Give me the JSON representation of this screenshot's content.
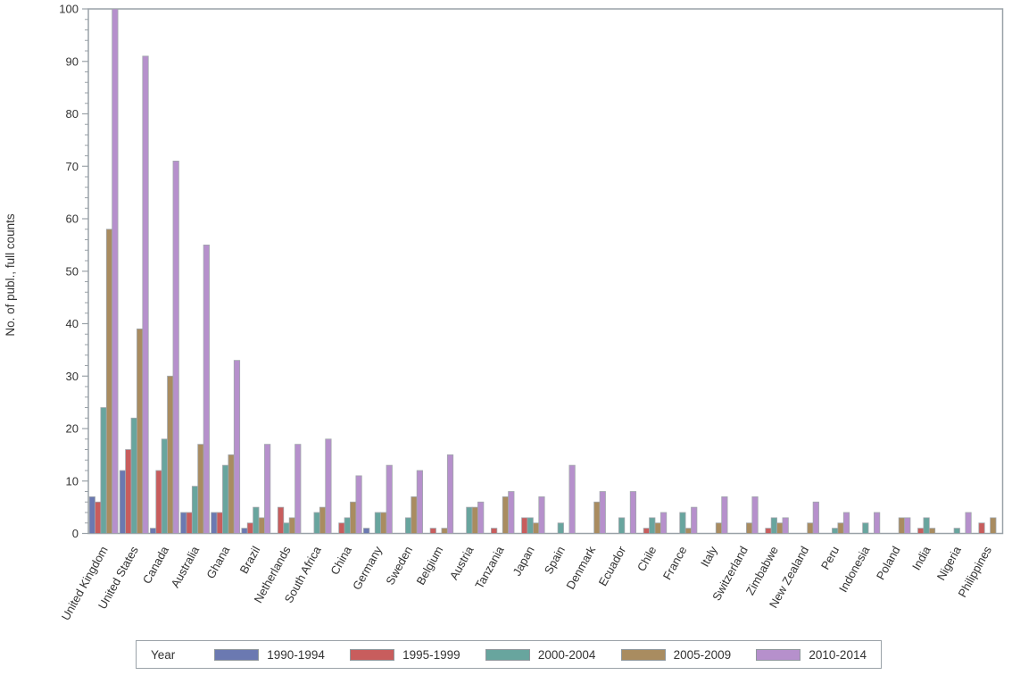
{
  "figure": {
    "background": "#ffffff",
    "frame_color": "#9aa2a8",
    "bar_border_color": "#a1a7ac",
    "text_color": "#333333"
  },
  "chart_data": {
    "type": "bar",
    "title": "",
    "xlabel": "",
    "ylabel": "No. of publ., full counts",
    "ylim": [
      0,
      100
    ],
    "y_major_tick_step": 10,
    "y_minor_tick_step": 2,
    "grid": false,
    "legend_position": "bottom",
    "legend_title": "Year",
    "categories": [
      "United Kingdom",
      "United States",
      "Canada",
      "Australia",
      "Ghana",
      "Brazil",
      "Netherlands",
      "South Africa",
      "China",
      "Germany",
      "Sweden",
      "Belgium",
      "Austria",
      "Tanzania",
      "Japan",
      "Spain",
      "Denmark",
      "Ecuador",
      "Chile",
      "France",
      "Italy",
      "Switzerland",
      "Zimbabwe",
      "New Zealand",
      "Peru",
      "Indonesia",
      "Poland",
      "India",
      "Nigeria",
      "Philippines"
    ],
    "series": [
      {
        "name": "1990-1994",
        "color": "#6b79b1",
        "values": [
          7,
          12,
          1,
          4,
          4,
          1,
          0,
          0,
          0,
          1,
          0,
          0,
          0,
          0,
          0,
          0,
          0,
          0,
          0,
          0,
          0,
          0,
          0,
          0,
          0,
          0,
          0,
          0,
          0,
          0
        ]
      },
      {
        "name": "1995-1999",
        "color": "#c85d5d",
        "values": [
          6,
          16,
          12,
          4,
          4,
          2,
          5,
          0,
          2,
          0,
          0,
          1,
          0,
          1,
          3,
          0,
          0,
          0,
          1,
          0,
          0,
          0,
          1,
          0,
          0,
          0,
          0,
          1,
          0,
          2
        ]
      },
      {
        "name": "2000-2004",
        "color": "#68a59e",
        "values": [
          24,
          22,
          18,
          9,
          13,
          5,
          2,
          4,
          3,
          4,
          3,
          0,
          5,
          0,
          3,
          2,
          0,
          3,
          3,
          4,
          0,
          0,
          3,
          0,
          1,
          2,
          0,
          3,
          1,
          0
        ]
      },
      {
        "name": "2005-2009",
        "color": "#a98c60",
        "values": [
          58,
          39,
          30,
          17,
          15,
          3,
          3,
          5,
          6,
          4,
          7,
          1,
          5,
          7,
          2,
          0,
          6,
          0,
          2,
          1,
          2,
          2,
          2,
          2,
          2,
          0,
          3,
          1,
          0,
          3
        ]
      },
      {
        "name": "2010-2014",
        "color": "#b690cc",
        "values": [
          100,
          91,
          71,
          55,
          33,
          17,
          17,
          18,
          11,
          13,
          12,
          15,
          6,
          8,
          7,
          13,
          8,
          8,
          4,
          5,
          7,
          7,
          3,
          6,
          4,
          4,
          3,
          0,
          4,
          0
        ]
      }
    ]
  }
}
